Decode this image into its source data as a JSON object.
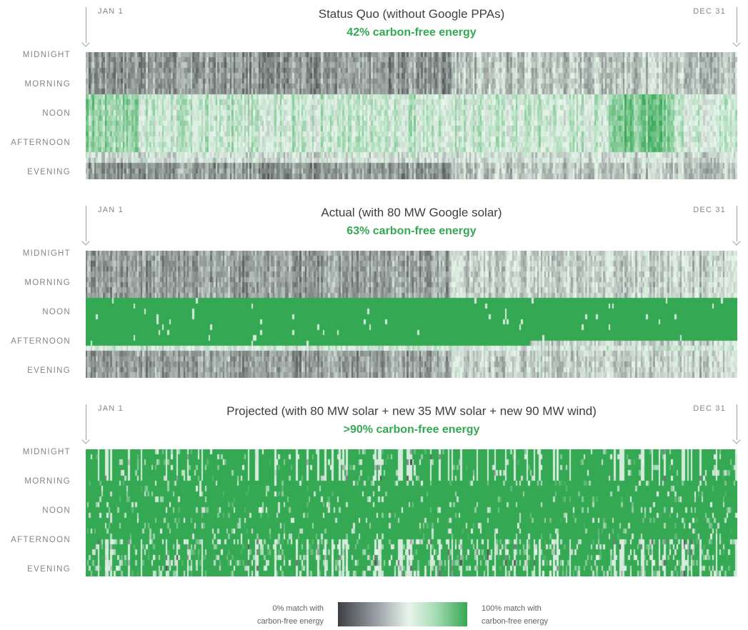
{
  "chart_data": [
    {
      "type": "heatmap",
      "title": "Status Quo (without Google PPAs)",
      "subtitle": "42% carbon-free energy",
      "x_start": "JAN 1",
      "x_end": "DEC 31",
      "y_categories": [
        "MIDNIGHT",
        "MORNING",
        "NOON",
        "AFTERNOON",
        "EVENING"
      ],
      "cfe_percent": 42,
      "color_scale": {
        "low": "#3c4043",
        "mid": "#e8f5ec",
        "high": "#34a853"
      }
    },
    {
      "type": "heatmap",
      "title": "Actual (with 80 MW Google solar)",
      "subtitle": "63% carbon-free energy",
      "x_start": "JAN 1",
      "x_end": "DEC 31",
      "y_categories": [
        "MIDNIGHT",
        "MORNING",
        "NOON",
        "AFTERNOON",
        "EVENING"
      ],
      "cfe_percent": 63,
      "color_scale": {
        "low": "#3c4043",
        "mid": "#e8f5ec",
        "high": "#34a853"
      }
    },
    {
      "type": "heatmap",
      "title": "Projected (with 80 MW solar + new 35 MW solar + new 90 MW wind)",
      "subtitle": ">90% carbon-free energy",
      "x_start": "JAN 1",
      "x_end": "DEC 31",
      "y_categories": [
        "MIDNIGHT",
        "MORNING",
        "NOON",
        "AFTERNOON",
        "EVENING"
      ],
      "cfe_percent": 90,
      "color_scale": {
        "low": "#3c4043",
        "mid": "#e8f5ec",
        "high": "#34a853"
      }
    }
  ],
  "legend": {
    "left_line1": "0% match with",
    "left_line2": "carbon-free energy",
    "right_line1": "100% match with",
    "right_line2": "carbon-free energy"
  },
  "colors": {
    "accent": "#34a853",
    "text": "#3c4043",
    "muted": "#80868b"
  }
}
